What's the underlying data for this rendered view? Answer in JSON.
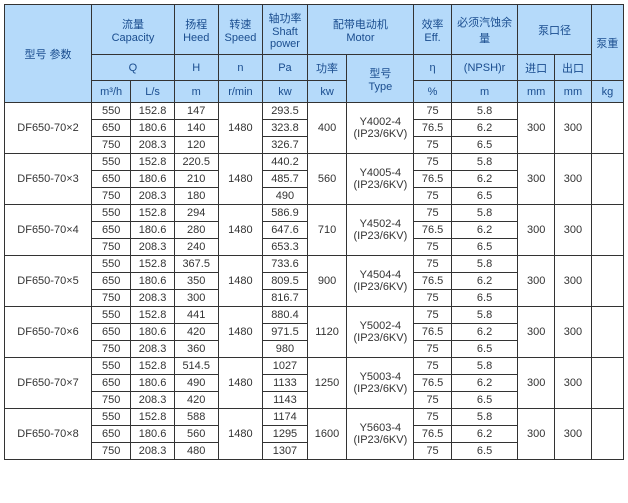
{
  "colors": {
    "header_bg": "#b5dafa",
    "header_text": "#1a4d8f",
    "border": "#333333",
    "body_bg": "#ffffff",
    "body_text": "#333333"
  },
  "header": {
    "r1": {
      "model_param": "型号        参数",
      "capacity": "流量\nCapacity",
      "head": "扬程\nHeed",
      "speed": "转速\nSpeed",
      "shaft_power": "轴功率\nShaft power",
      "motor": "配带电动机\nMotor",
      "eff": "效率\nEff.",
      "npsh": "必须汽蚀余量",
      "pump_dia": "泵口径",
      "pump_wt": "泵重"
    },
    "r2": {
      "Q": "Q",
      "H": "H",
      "n": "n",
      "Pa": "Pa",
      "power": "功率",
      "model": "型号\nType",
      "eta": "η",
      "npshr": "(NPSH)r",
      "inlet": "进口",
      "outlet": "出口"
    },
    "r3": {
      "m3h": "m³/h",
      "Ls": "L/s",
      "m": "m",
      "rmin": "r/min",
      "kw1": "kw",
      "kw2": "kw",
      "pct": "%",
      "m2": "m",
      "mm1": "mm",
      "mm2": "mm",
      "kg": "kg"
    }
  },
  "groups": [
    {
      "model": "DF650-70×2",
      "speed": "1480",
      "motor_power": "400",
      "motor_model": "Y4002-4\n(IP23/6KV)",
      "inlet": "300",
      "outlet": "300",
      "weight": "",
      "rows": [
        {
          "q": "550",
          "ls": "152.8",
          "h": "147",
          "pa": "293.5",
          "eff": "75",
          "npsh": "5.8"
        },
        {
          "q": "650",
          "ls": "180.6",
          "h": "140",
          "pa": "323.8",
          "eff": "76.5",
          "npsh": "6.2"
        },
        {
          "q": "750",
          "ls": "208.3",
          "h": "120",
          "pa": "326.7",
          "eff": "75",
          "npsh": "6.5"
        }
      ]
    },
    {
      "model": "DF650-70×3",
      "speed": "1480",
      "motor_power": "560",
      "motor_model": "Y4005-4\n(IP23/6KV)",
      "inlet": "300",
      "outlet": "300",
      "weight": "",
      "rows": [
        {
          "q": "550",
          "ls": "152.8",
          "h": "220.5",
          "pa": "440.2",
          "eff": "75",
          "npsh": "5.8"
        },
        {
          "q": "650",
          "ls": "180.6",
          "h": "210",
          "pa": "485.7",
          "eff": "76.5",
          "npsh": "6.2"
        },
        {
          "q": "750",
          "ls": "208.3",
          "h": "180",
          "pa": "490",
          "eff": "75",
          "npsh": "6.5"
        }
      ]
    },
    {
      "model": "DF650-70×4",
      "speed": "1480",
      "motor_power": "710",
      "motor_model": "Y4502-4\n(IP23/6KV)",
      "inlet": "300",
      "outlet": "300",
      "weight": "",
      "rows": [
        {
          "q": "550",
          "ls": "152.8",
          "h": "294",
          "pa": "586.9",
          "eff": "75",
          "npsh": "5.8"
        },
        {
          "q": "650",
          "ls": "180.6",
          "h": "280",
          "pa": "647.6",
          "eff": "76.5",
          "npsh": "6.2"
        },
        {
          "q": "750",
          "ls": "208.3",
          "h": "240",
          "pa": "653.3",
          "eff": "75",
          "npsh": "6.5"
        }
      ]
    },
    {
      "model": "DF650-70×5",
      "speed": "1480",
      "motor_power": "900",
      "motor_model": "Y4504-4\n(IP23/6KV)",
      "inlet": "300",
      "outlet": "300",
      "weight": "",
      "rows": [
        {
          "q": "550",
          "ls": "152.8",
          "h": "367.5",
          "pa": "733.6",
          "eff": "75",
          "npsh": "5.8"
        },
        {
          "q": "650",
          "ls": "180.6",
          "h": "350",
          "pa": "809.5",
          "eff": "76.5",
          "npsh": "6.2"
        },
        {
          "q": "750",
          "ls": "208.3",
          "h": "300",
          "pa": "816.7",
          "eff": "75",
          "npsh": "6.5"
        }
      ]
    },
    {
      "model": "DF650-70×6",
      "speed": "1480",
      "motor_power": "1120",
      "motor_model": "Y5002-4\n(IP23/6KV)",
      "inlet": "300",
      "outlet": "300",
      "weight": "",
      "rows": [
        {
          "q": "550",
          "ls": "152.8",
          "h": "441",
          "pa": "880.4",
          "eff": "75",
          "npsh": "5.8"
        },
        {
          "q": "650",
          "ls": "180.6",
          "h": "420",
          "pa": "971.5",
          "eff": "76.5",
          "npsh": "6.2"
        },
        {
          "q": "750",
          "ls": "208.3",
          "h": "360",
          "pa": "980",
          "eff": "75",
          "npsh": "6.5"
        }
      ]
    },
    {
      "model": "DF650-70×7",
      "speed": "1480",
      "motor_power": "1250",
      "motor_model": "Y5003-4\n(IP23/6KV)",
      "inlet": "300",
      "outlet": "300",
      "weight": "",
      "rows": [
        {
          "q": "550",
          "ls": "152.8",
          "h": "514.5",
          "pa": "1027",
          "eff": "75",
          "npsh": "5.8"
        },
        {
          "q": "650",
          "ls": "180.6",
          "h": "490",
          "pa": "1133",
          "eff": "76.5",
          "npsh": "6.2"
        },
        {
          "q": "750",
          "ls": "208.3",
          "h": "420",
          "pa": "1143",
          "eff": "75",
          "npsh": "6.5"
        }
      ]
    },
    {
      "model": "DF650-70×8",
      "speed": "1480",
      "motor_power": "1600",
      "motor_model": "Y5603-4\n(IP23/6KV)",
      "inlet": "300",
      "outlet": "300",
      "weight": "",
      "rows": [
        {
          "q": "550",
          "ls": "152.8",
          "h": "588",
          "pa": "1174",
          "eff": "75",
          "npsh": "5.8"
        },
        {
          "q": "650",
          "ls": "180.6",
          "h": "560",
          "pa": "1295",
          "eff": "76.5",
          "npsh": "6.2"
        },
        {
          "q": "750",
          "ls": "208.3",
          "h": "480",
          "pa": "1307",
          "eff": "75",
          "npsh": "6.5"
        }
      ]
    }
  ]
}
